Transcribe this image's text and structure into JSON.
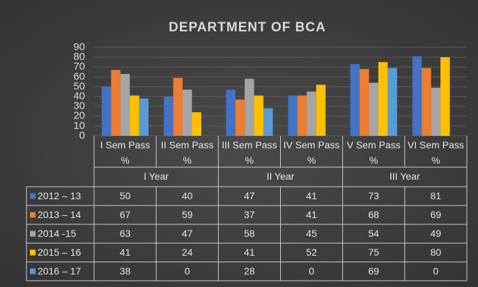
{
  "chart_data": {
    "type": "bar",
    "title": "DEPARTMENT OF BCA",
    "categories": [
      "I Sem Pass %",
      "II Sem Pass %",
      "III Sem Pass %",
      "IV Sem Pass %",
      "V Sem Pass %",
      "VI Sem Pass %"
    ],
    "groups": [
      "I Year",
      "II Year",
      "III Year"
    ],
    "series": [
      {
        "name": "2012 – 13",
        "color": "#4472c4",
        "values": [
          50,
          40,
          47,
          41,
          73,
          81
        ]
      },
      {
        "name": "2013 – 14",
        "color": "#ed7d31",
        "values": [
          67,
          59,
          37,
          41,
          68,
          69
        ]
      },
      {
        "name": "2014 -15",
        "color": "#a5a5a5",
        "values": [
          63,
          47,
          58,
          45,
          54,
          49
        ]
      },
      {
        "name": "2015 – 16",
        "color": "#ffc000",
        "values": [
          41,
          24,
          41,
          52,
          75,
          80
        ]
      },
      {
        "name": "2016 – 17",
        "color": "#5b9bd5",
        "values": [
          38,
          0,
          28,
          0,
          69,
          0
        ]
      }
    ],
    "ylim": [
      0,
      90
    ],
    "yticks": [
      0,
      10,
      20,
      30,
      40,
      50,
      60,
      70,
      80,
      90
    ],
    "grid": true
  }
}
